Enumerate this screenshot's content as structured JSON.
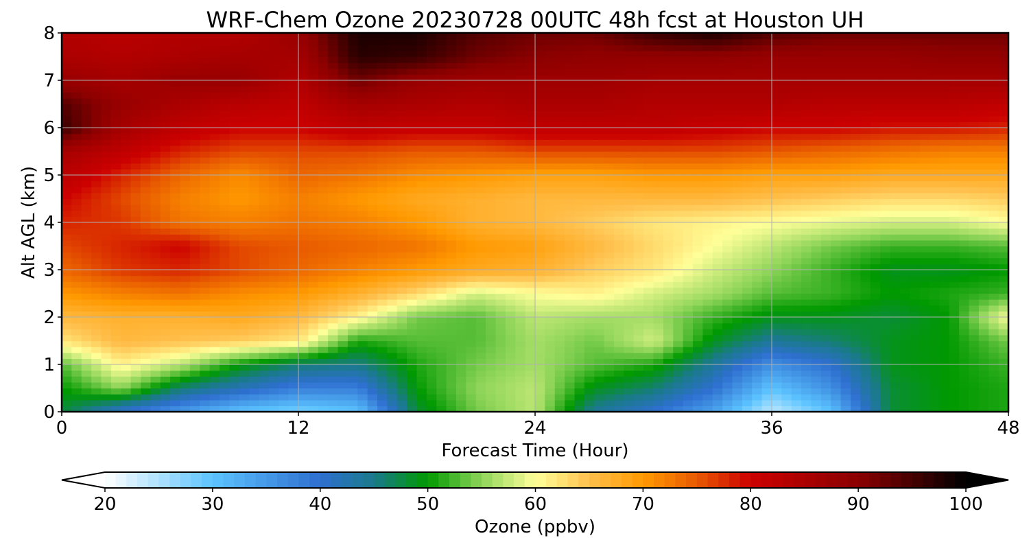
{
  "chart_data": {
    "type": "heatmap",
    "title": "WRF-Chem Ozone  20230728 00UTC 48h fcst at Houston UH",
    "xlabel": "Forecast Time (Hour)",
    "ylabel": "Alt AGL (km)",
    "xlim": [
      0,
      48
    ],
    "ylim": [
      0,
      8
    ],
    "x_ticks": [
      "0",
      "12",
      "24",
      "36",
      "48"
    ],
    "y_ticks": [
      "0",
      "1",
      "2",
      "3",
      "4",
      "5",
      "6",
      "7",
      "8"
    ],
    "grid": true,
    "x": [
      0,
      3,
      6,
      9,
      12,
      15,
      18,
      21,
      24,
      27,
      30,
      33,
      36,
      39,
      42,
      45,
      48
    ],
    "y": [
      0,
      0.5,
      1,
      1.5,
      2,
      2.5,
      3,
      3.5,
      4,
      4.5,
      5,
      5.5,
      6,
      6.5,
      7,
      7.5,
      8
    ],
    "z": [
      [
        48,
        40,
        35,
        30,
        28,
        30,
        48,
        54,
        57,
        44,
        40,
        34,
        24,
        30,
        48,
        50,
        51
      ],
      [
        50,
        55,
        46,
        42,
        38,
        38,
        50,
        55,
        57,
        49,
        46,
        40,
        30,
        36,
        48,
        50,
        51
      ],
      [
        53,
        61,
        57,
        50,
        46,
        45,
        51,
        54,
        56,
        53,
        51,
        44,
        36,
        40,
        49,
        50,
        52
      ],
      [
        62,
        66,
        65,
        64,
        62,
        51,
        53,
        53,
        56,
        54,
        58,
        49,
        44,
        46,
        49,
        50,
        54
      ],
      [
        66,
        67,
        67,
        68,
        66,
        61,
        54,
        53,
        57,
        56,
        56,
        52,
        49,
        49,
        48,
        50,
        60
      ],
      [
        70,
        72,
        73,
        71,
        70,
        67,
        63,
        58,
        60,
        61,
        58,
        56,
        53,
        52,
        50,
        51,
        52
      ],
      [
        74,
        77,
        78,
        76,
        74,
        72,
        70,
        68,
        67,
        64,
        62,
        58,
        55,
        52,
        49,
        49,
        50
      ],
      [
        76,
        78,
        80,
        76,
        75,
        74,
        73,
        70,
        69,
        66,
        63,
        60,
        57,
        54,
        52,
        52,
        53
      ],
      [
        78,
        77,
        73,
        72,
        73,
        72,
        70,
        67,
        66,
        64,
        62,
        61,
        60,
        59,
        58,
        58,
        60
      ],
      [
        80,
        76,
        72,
        70,
        72,
        70,
        68,
        67,
        66,
        66,
        66,
        66,
        65,
        64,
        63,
        63,
        64
      ],
      [
        83,
        78,
        74,
        71,
        74,
        73,
        71,
        70,
        69,
        69,
        70,
        70,
        69,
        69,
        68,
        68,
        68
      ],
      [
        86,
        82,
        78,
        76,
        76,
        76,
        75,
        75,
        76,
        76,
        76,
        76,
        75,
        74,
        73,
        72,
        72
      ],
      [
        96,
        86,
        82,
        80,
        80,
        82,
        81,
        81,
        82,
        82,
        82,
        81,
        80,
        80,
        79,
        79,
        78
      ],
      [
        94,
        88,
        85,
        83,
        82,
        86,
        85,
        84,
        85,
        85,
        84,
        84,
        84,
        83,
        83,
        83,
        82
      ],
      [
        88,
        86,
        88,
        88,
        84,
        92,
        88,
        87,
        87,
        87,
        86,
        86,
        86,
        86,
        86,
        86,
        86
      ],
      [
        85,
        84,
        85,
        86,
        86,
        97,
        96,
        92,
        90,
        89,
        89,
        89,
        88,
        88,
        88,
        89,
        89
      ],
      [
        84,
        83,
        84,
        84,
        88,
        98,
        98,
        94,
        92,
        92,
        96,
        98,
        94,
        92,
        92,
        92,
        92
      ]
    ],
    "colorbar": {
      "label": "Ozone  (ppbv)",
      "min": 20,
      "max": 100,
      "ticks": [
        "20",
        "30",
        "40",
        "50",
        "60",
        "70",
        "80",
        "90",
        "100"
      ],
      "extend": "both",
      "stops": [
        {
          "v": 20,
          "c": "#ffffff"
        },
        {
          "v": 30,
          "c": "#5cc3ff"
        },
        {
          "v": 40,
          "c": "#2e6fd0"
        },
        {
          "v": 45,
          "c": "#1a7a8a"
        },
        {
          "v": 50,
          "c": "#009900"
        },
        {
          "v": 55,
          "c": "#8fd55a"
        },
        {
          "v": 60,
          "c": "#ffff99"
        },
        {
          "v": 65,
          "c": "#ffc04d"
        },
        {
          "v": 70,
          "c": "#ff9900"
        },
        {
          "v": 75,
          "c": "#e85a00"
        },
        {
          "v": 80,
          "c": "#cc0000"
        },
        {
          "v": 90,
          "c": "#8b0000"
        },
        {
          "v": 100,
          "c": "#000000"
        }
      ]
    }
  }
}
